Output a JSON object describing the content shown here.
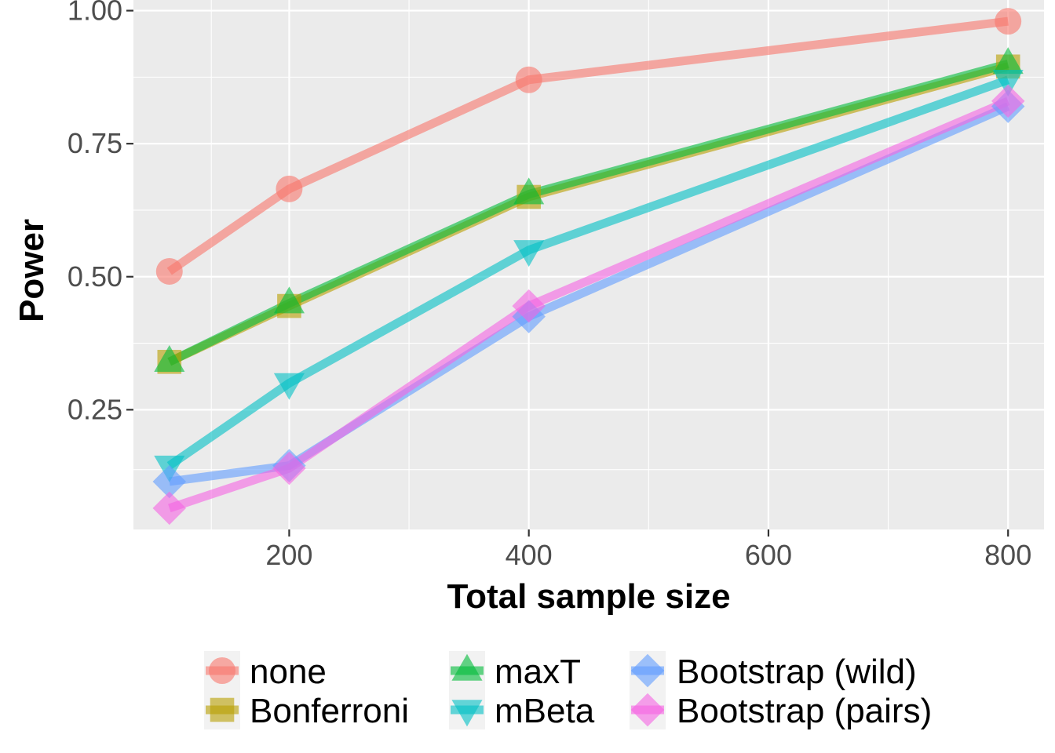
{
  "chart_data": {
    "type": "line",
    "title": "",
    "xlabel": "Total sample size",
    "ylabel": "Power",
    "x": [
      100,
      200,
      400,
      800
    ],
    "xlim": [
      70,
      830
    ],
    "ylim": [
      0.025,
      1.02
    ],
    "xticks": [
      200,
      400,
      600,
      800
    ],
    "xtick_labels": [
      "200",
      "400",
      "600",
      "800"
    ],
    "yticks": [
      0.25,
      0.5,
      0.75,
      1.0
    ],
    "ytick_labels": [
      "0.25",
      "0.50",
      "0.75",
      "1.00"
    ],
    "grid": true,
    "legend_position": "bottom",
    "series": [
      {
        "name": "none",
        "key": "none",
        "color": "#F8766D",
        "shape": "circle",
        "values": [
          0.51,
          0.665,
          0.87,
          0.98
        ]
      },
      {
        "name": "Bonferroni",
        "key": "bonferroni",
        "color": "#B79F00",
        "shape": "square",
        "values": [
          0.34,
          0.445,
          0.65,
          0.895
        ]
      },
      {
        "name": "maxT",
        "key": "maxt",
        "color": "#00BA38",
        "shape": "triangle-up",
        "values": [
          0.34,
          0.45,
          0.655,
          0.9
        ]
      },
      {
        "name": "mBeta",
        "key": "mbeta",
        "color": "#00BFC4",
        "shape": "triangle-down",
        "values": [
          0.145,
          0.3,
          0.55,
          0.87
        ]
      },
      {
        "name": "Bootstrap (wild)",
        "key": "bootstrap-wild",
        "color": "#619CFF",
        "shape": "diamond",
        "values": [
          0.115,
          0.145,
          0.425,
          0.82
        ]
      },
      {
        "name": "Bootstrap (pairs)",
        "key": "bootstrap-pairs",
        "color": "#F564E3",
        "shape": "diamond",
        "values": [
          0.065,
          0.14,
          0.445,
          0.83
        ]
      }
    ]
  }
}
